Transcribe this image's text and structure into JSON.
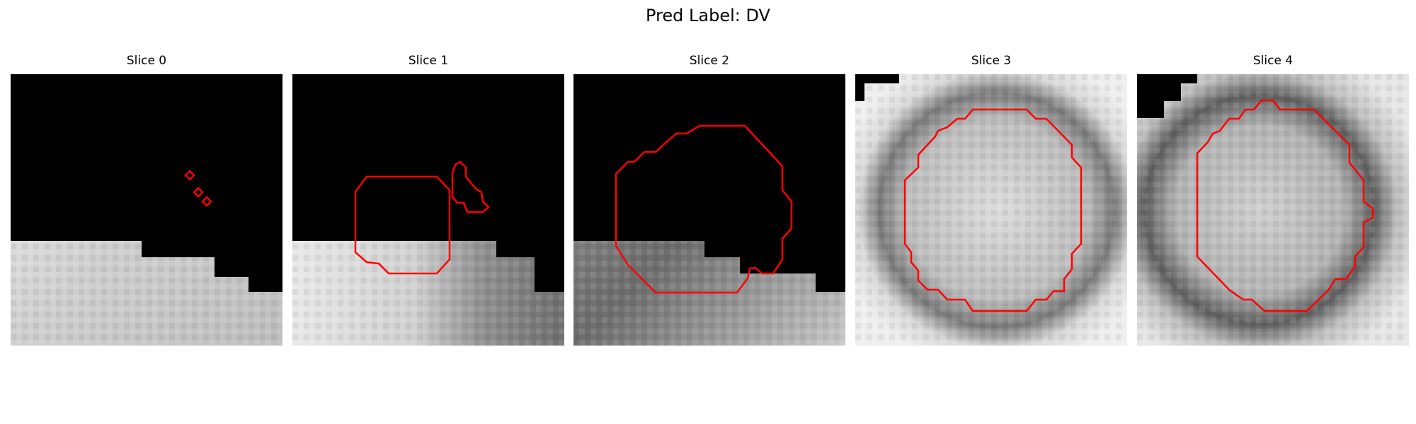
{
  "figure": {
    "title": "Pred Label: DV"
  },
  "panels": [
    {
      "title": "Slice 0",
      "overlay": "red-contour"
    },
    {
      "title": "Slice 1",
      "overlay": "red-contour"
    },
    {
      "title": "Slice 2",
      "overlay": "red-contour"
    },
    {
      "title": "Slice 3",
      "overlay": "red-contour"
    },
    {
      "title": "Slice 4",
      "overlay": "red-contour"
    }
  ],
  "colors": {
    "contour": "#ff0000",
    "mask": "#000000",
    "background": "#ffffff"
  }
}
